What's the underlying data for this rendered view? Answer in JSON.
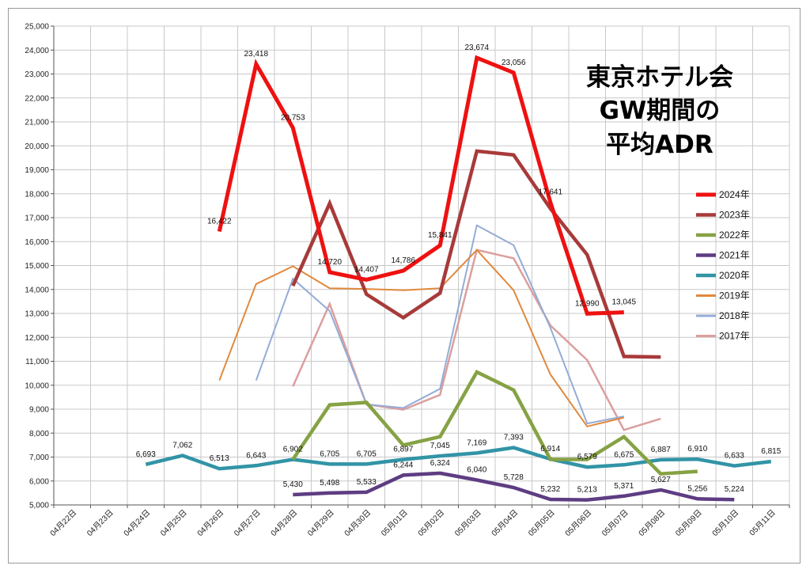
{
  "chart_data": {
    "type": "line",
    "title_lines": [
      "東京ホテル会",
      "GW期間の",
      "平均ADR"
    ],
    "ylim": [
      5000,
      25000
    ],
    "y_ticks": [
      5000,
      6000,
      7000,
      8000,
      9000,
      10000,
      11000,
      12000,
      13000,
      14000,
      15000,
      16000,
      17000,
      18000,
      19000,
      20000,
      21000,
      22000,
      23000,
      24000,
      25000
    ],
    "y_tick_labels": [
      "5,000",
      "6,000",
      "7,000",
      "8,000",
      "9,000",
      "10,000",
      "11,000",
      "12,000",
      "13,000",
      "14,000",
      "15,000",
      "16,000",
      "17,000",
      "18,000",
      "19,000",
      "20,000",
      "21,000",
      "22,000",
      "23,000",
      "24,000",
      "25,000"
    ],
    "categories": [
      "04月22日",
      "04月23日",
      "04月24日",
      "04月25日",
      "04月26日",
      "04月27日",
      "04月28日",
      "04月29日",
      "04月30日",
      "05月01日",
      "05月02日",
      "05月03日",
      "05月04日",
      "05月05日",
      "05月06日",
      "05月07日",
      "05月08日",
      "05月09日",
      "05月10日",
      "05月11日"
    ],
    "grid": true,
    "legend_position": "right",
    "series": [
      {
        "name": "2024年",
        "color": "#ee1111",
        "width": 5,
        "values": [
          null,
          null,
          null,
          null,
          16422,
          23418,
          20753,
          14720,
          14407,
          14786,
          15841,
          23674,
          23056,
          17641,
          12990,
          13045,
          null,
          null,
          null,
          null
        ],
        "labels": [
          null,
          null,
          null,
          null,
          "16,422",
          "23,418",
          "20,753",
          "14,720",
          "14,407",
          "14,786",
          "15,841",
          "23,674",
          "23,056",
          "17,641",
          "12,990",
          "13,045",
          null,
          null,
          null,
          null
        ]
      },
      {
        "name": "2023年",
        "color": "#a83a3a",
        "width": 4.5,
        "values": [
          null,
          null,
          null,
          null,
          null,
          null,
          14150,
          17600,
          13800,
          12820,
          13850,
          19780,
          19620,
          17380,
          15450,
          11200,
          11180,
          null,
          null,
          null
        ],
        "labels": []
      },
      {
        "name": "2022年",
        "color": "#86a244",
        "width": 4.5,
        "values": [
          null,
          null,
          null,
          null,
          null,
          null,
          6900,
          9180,
          9280,
          7500,
          7850,
          10550,
          9800,
          6900,
          6900,
          7850,
          6300,
          6400,
          null,
          null
        ],
        "labels": []
      },
      {
        "name": "2021年",
        "color": "#5e3d83",
        "width": 4.5,
        "values": [
          null,
          null,
          null,
          null,
          null,
          null,
          5430,
          5498,
          5533,
          6244,
          6324,
          6040,
          5728,
          5232,
          5213,
          5371,
          5627,
          5256,
          5224,
          null
        ],
        "labels": [
          null,
          null,
          null,
          null,
          null,
          null,
          "5,430",
          "5,498",
          "5,533",
          "6,244",
          "6,324",
          "6,040",
          "5,728",
          "5,232",
          "5,213",
          "5,371",
          "5,627",
          "5,256",
          "5,224",
          null
        ]
      },
      {
        "name": "2020年",
        "color": "#3294a6",
        "width": 4.5,
        "values": [
          null,
          null,
          6693,
          7062,
          6513,
          6643,
          6902,
          6705,
          6705,
          6897,
          7045,
          7169,
          7393,
          6914,
          6579,
          6675,
          6887,
          6910,
          6633,
          6815
        ],
        "labels": [
          null,
          null,
          "6,693",
          "7,062",
          "6,513",
          "6,643",
          "6,902",
          "6,705",
          "6,705",
          "6,897",
          "7,045",
          "7,169",
          "7,393",
          "6,914",
          "6,579",
          "6,675",
          "6,887",
          "6,910",
          "6,633",
          "6,815"
        ]
      },
      {
        "name": "2019年",
        "color": "#e0893c",
        "width": 2,
        "values": [
          null,
          null,
          null,
          null,
          10200,
          14230,
          14970,
          14050,
          14020,
          13970,
          14050,
          15650,
          13970,
          10450,
          8280,
          8650,
          null,
          null,
          null,
          null
        ],
        "labels": []
      },
      {
        "name": "2018年",
        "color": "#94acd6",
        "width": 2,
        "values": [
          null,
          null,
          null,
          null,
          null,
          10200,
          14450,
          13100,
          9200,
          9050,
          9850,
          16680,
          15850,
          12400,
          8400,
          8700,
          null,
          null,
          null,
          null
        ],
        "labels": []
      },
      {
        "name": "2017年",
        "color": "#dc9e9e",
        "width": 2.5,
        "values": [
          null,
          null,
          null,
          null,
          null,
          null,
          9950,
          13400,
          9200,
          8980,
          9600,
          15650,
          15300,
          12500,
          11050,
          8130,
          8600,
          null,
          null,
          null
        ],
        "labels": []
      }
    ]
  }
}
